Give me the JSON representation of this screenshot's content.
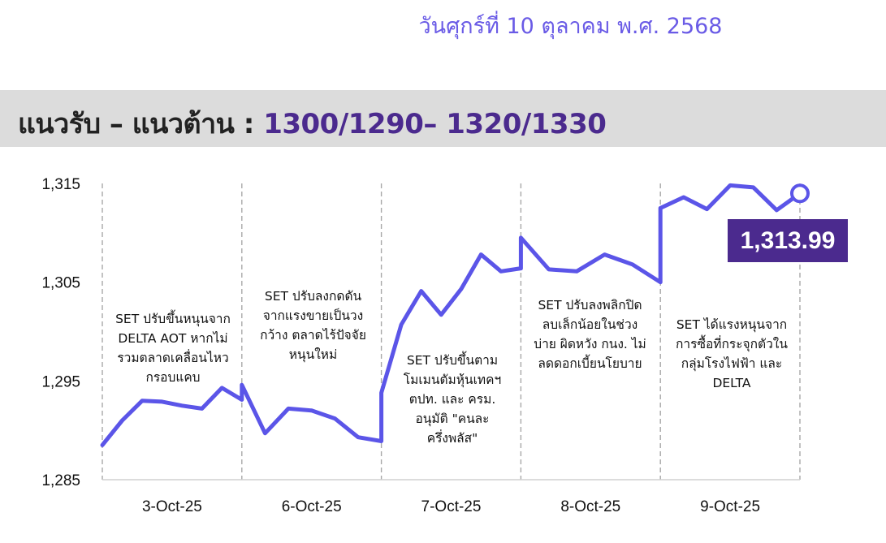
{
  "header": {
    "date": "วันศุกร์ที่ 10 ตุลาคม พ.ศ. 2568",
    "band_label": "แนวรับ – แนวต้าน : ",
    "band_range": "1300/1290– 1320/1330"
  },
  "chart_data": {
    "type": "line",
    "ylim": [
      1285,
      1315
    ],
    "yticks": [
      "1,315",
      "1,305",
      "1,295",
      "1,285"
    ],
    "ytick_values": [
      1315,
      1305,
      1295,
      1285
    ],
    "categories": [
      "3-Oct-25",
      "6-Oct-25",
      "7-Oct-25",
      "8-Oct-25",
      "9-Oct-25"
    ],
    "grid": "vertical dashed separators between days",
    "series": [
      {
        "color": "#5b55e8",
        "values": [
          [
            1288.5,
            1291.0,
            1293.0,
            1292.9,
            1292.5,
            1292.2,
            1294.3,
            1293.1
          ],
          [
            1294.6,
            1289.7,
            1292.2,
            1292.0,
            1291.2,
            1289.3,
            1288.9
          ],
          [
            1293.8,
            1300.7,
            1304.1,
            1301.7,
            1304.3,
            1307.8,
            1306.1,
            1306.4
          ],
          [
            1309.5,
            1306.3,
            1306.1,
            1307.8,
            1306.8,
            1305.0
          ],
          [
            1312.5,
            1313.6,
            1312.4,
            1314.8,
            1314.6,
            1312.3,
            1313.99
          ]
        ]
      }
    ],
    "last_value_label": "1,313.99",
    "annotations": [
      "SET ปรับขึ้นหนุนจาก\nDELTA AOT หากไม่\nรวมตลาดเคลื่อนไหว\nกรอบแคบ",
      "SET ปรับลงกดดัน\nจากแรงขายเป็นวง\nกว้าง ตลาดไร้ปัจจัย\nหนุนใหม่",
      "SET ปรับขึ้นตาม\nโมเมนตัมหุ้นเทคฯ\nตปท. และ ครม.\nอนุมัติ \"คนละ\nครึ่งพลัส\"",
      "SET ปรับลงพลิกปิด\nลบเล็กน้อยในช่วง\nบ่าย ผิดหวัง กนง. ไม่\nลดดอกเบี้ยนโยบาย",
      "SET ได้แรงหนุนจาก\nการซื้อที่กระจุกตัวใน\nกลุ่มโรงไฟฟ้า และ\nDELTA"
    ]
  }
}
